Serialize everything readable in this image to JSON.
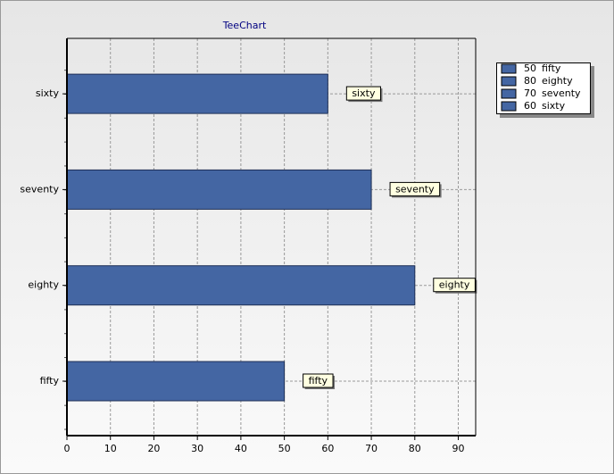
{
  "chart_data": {
    "type": "bar",
    "orientation": "horizontal",
    "title": "TeeChart",
    "categories": [
      "fifty",
      "eighty",
      "seventy",
      "sixty"
    ],
    "values": [
      50,
      80,
      70,
      60
    ],
    "color": "#4466a3",
    "xlim": [
      0,
      94
    ],
    "xticks": [
      0,
      10,
      20,
      30,
      40,
      50,
      60,
      70,
      80,
      90
    ],
    "grid": true,
    "legend": "right"
  }
}
